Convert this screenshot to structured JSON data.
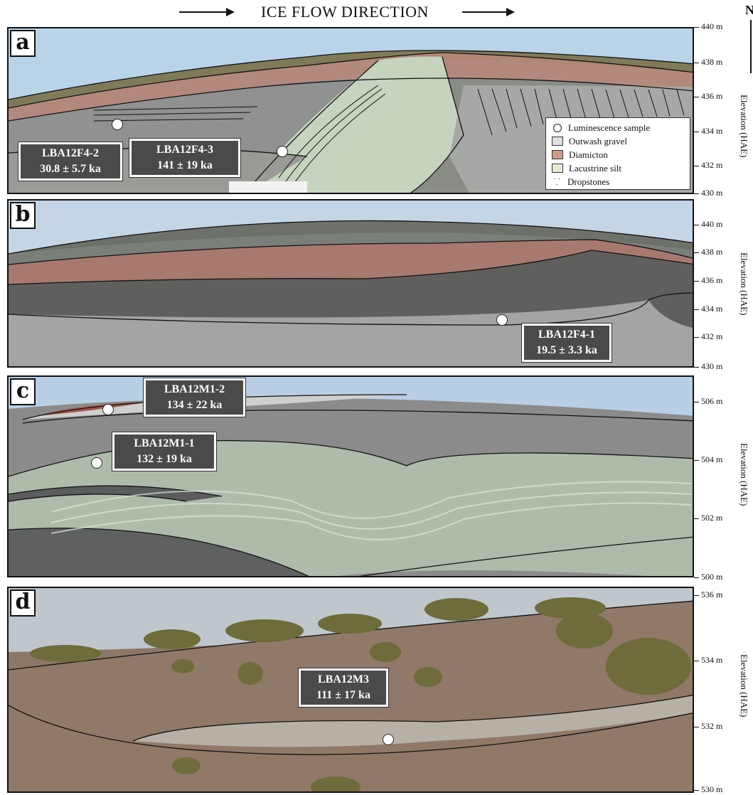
{
  "header": {
    "title": "ICE FLOW DIRECTION",
    "north": "N"
  },
  "legend": {
    "items": [
      {
        "label": "Luminescence sample",
        "symbol": "circle"
      },
      {
        "label": "Outwash gravel",
        "color": "#dde0dc"
      },
      {
        "label": "Diamicton",
        "color": "#cf9a8a"
      },
      {
        "label": "Lacustrine silt",
        "color": "#e4ead4"
      },
      {
        "label": "Dropstones",
        "symbol": "dots"
      }
    ]
  },
  "axis_label": "Elevation (HAE)",
  "panels": [
    {
      "label": "a",
      "ticks": [
        "440 m",
        "438 m",
        "436 m",
        "434 m",
        "432 m",
        "430 m"
      ],
      "samples": [
        {
          "id": "LBA12F4-2",
          "age": "30.8 ± 5.7 ka"
        },
        {
          "id": "LBA12F4-3",
          "age": "141 ± 19 ka"
        }
      ]
    },
    {
      "label": "b",
      "ticks": [
        "440 m",
        "438 m",
        "436 m",
        "434 m",
        "432 m",
        "430 m"
      ],
      "samples": [
        {
          "id": "LBA12F4-1",
          "age": "19.5 ± 3.3 ka"
        }
      ]
    },
    {
      "label": "c",
      "ticks": [
        "506 m",
        "504 m",
        "502 m",
        "500 m"
      ],
      "samples": [
        {
          "id": "LBA12M1-2",
          "age": "134 ± 22 ka"
        },
        {
          "id": "LBA12M1-1",
          "age": "132 ± 19 ka"
        }
      ]
    },
    {
      "label": "d",
      "ticks": [
        "536 m",
        "534 m",
        "532 m",
        "530 m"
      ],
      "samples": [
        {
          "id": "LBA12M3",
          "age": "111 ± 17 ka"
        }
      ]
    }
  ],
  "colors": {
    "sky": "#aecde3",
    "gravel": "#7d7f7e",
    "diamicton": "#a87a6d",
    "silt": "#b9c7b3",
    "sand": "#a08a78",
    "vegetation": "#6f6f3e"
  }
}
